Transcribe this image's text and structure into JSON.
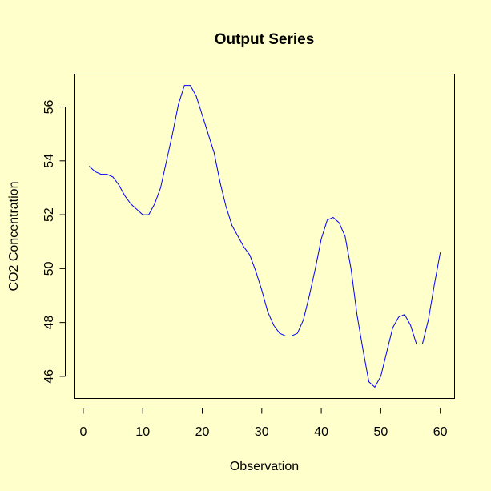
{
  "chart_data": {
    "type": "line",
    "title": "Output Series",
    "xlabel": "Observation",
    "ylabel": "CO2 Concentration",
    "xlim": [
      -1.4,
      62.4
    ],
    "ylim": [
      45.18,
      57.22
    ],
    "x_ticks": [
      0,
      10,
      20,
      30,
      40,
      50,
      60
    ],
    "y_ticks": [
      46,
      48,
      50,
      52,
      54,
      56
    ],
    "grid": false,
    "legend": "none",
    "series": [
      {
        "color": "#0000ff",
        "x": [
          1,
          2,
          3,
          4,
          5,
          6,
          7,
          8,
          9,
          10,
          11,
          12,
          13,
          14,
          15,
          16,
          17,
          18,
          19,
          20,
          21,
          22,
          23,
          24,
          25,
          26,
          27,
          28,
          29,
          30,
          31,
          32,
          33,
          34,
          35,
          36,
          37,
          38,
          39,
          40,
          41,
          42,
          43,
          44,
          45,
          46,
          47,
          48,
          49,
          50,
          51,
          52,
          53,
          54,
          55,
          56,
          57,
          58,
          59,
          60
        ],
        "values": [
          53.8,
          53.6,
          53.5,
          53.5,
          53.4,
          53.1,
          52.7,
          52.4,
          52.2,
          52.0,
          52.0,
          52.4,
          53.0,
          54.0,
          55.0,
          56.1,
          56.8,
          56.8,
          56.4,
          55.7,
          55.0,
          54.3,
          53.2,
          52.3,
          51.6,
          51.2,
          50.8,
          50.5,
          49.9,
          49.2,
          48.4,
          47.9,
          47.6,
          47.5,
          47.5,
          47.6,
          48.1,
          49.0,
          50.0,
          51.1,
          51.8,
          51.9,
          51.7,
          51.2,
          50.0,
          48.3,
          47.0,
          45.8,
          45.6,
          46.0,
          46.9,
          47.8,
          48.2,
          48.3,
          47.9,
          47.2,
          47.2,
          48.1,
          49.4,
          50.6
        ]
      }
    ]
  },
  "colors": {
    "background": "#ffffcc",
    "line": "#0000ff",
    "axis": "#000000"
  }
}
